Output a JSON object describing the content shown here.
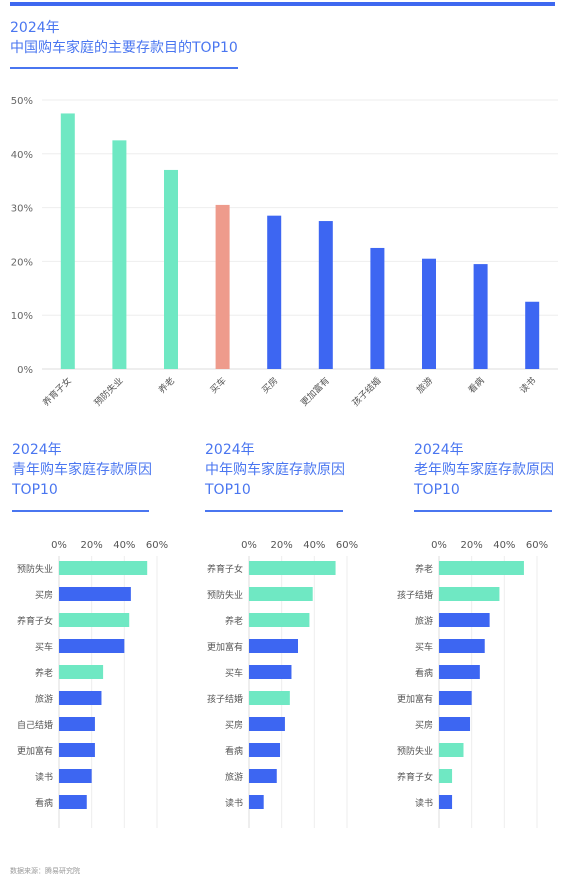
{
  "colors": {
    "green": "#6fe8c3",
    "blue": "#3d66f2",
    "salmon": "#ee9b8c",
    "title": "#4a76f0"
  },
  "main": {
    "title_line1": "2024年",
    "title_line2": "中国购车家庭的主要存款目的TOP10"
  },
  "chart_data": [
    {
      "type": "bar",
      "title": "2024年 中国购车家庭的主要存款目的TOP10",
      "categories": [
        "养育子女",
        "预防失业",
        "养老",
        "买车",
        "买房",
        "更加富有",
        "孩子结婚",
        "旅游",
        "看病",
        "读书"
      ],
      "values": [
        47.5,
        42.5,
        37,
        30.5,
        28.5,
        27.5,
        22.5,
        20.5,
        19.5,
        12.5
      ],
      "colors": [
        "green",
        "green",
        "green",
        "salmon",
        "blue",
        "blue",
        "blue",
        "blue",
        "blue",
        "blue"
      ],
      "ylim": [
        0,
        50
      ],
      "yticks": [
        "0%",
        "10%",
        "20%",
        "30%",
        "40%",
        "50%"
      ],
      "grid": true
    },
    {
      "type": "bar",
      "orientation": "horizontal",
      "title": "2024年 青年购车家庭存款原因 TOP10",
      "categories": [
        "预防失业",
        "买房",
        "养育子女",
        "买车",
        "养老",
        "旅游",
        "自己结婚",
        "更加富有",
        "读书",
        "看病"
      ],
      "values": [
        54,
        44,
        43,
        40,
        27,
        26,
        22,
        22,
        20,
        17
      ],
      "colors": [
        "green",
        "blue",
        "green",
        "blue",
        "green",
        "blue",
        "blue",
        "blue",
        "blue",
        "blue"
      ],
      "xlim": [
        0,
        60
      ],
      "xticks": [
        "0%",
        "20%",
        "40%",
        "60%"
      ]
    },
    {
      "type": "bar",
      "orientation": "horizontal",
      "title": "2024年 中年购车家庭存款原因 TOP10",
      "categories": [
        "养育子女",
        "预防失业",
        "养老",
        "更加富有",
        "买车",
        "孩子结婚",
        "买房",
        "看病",
        "旅游",
        "读书"
      ],
      "values": [
        53,
        39,
        37,
        30,
        26,
        25,
        22,
        19,
        17,
        9
      ],
      "colors": [
        "green",
        "green",
        "green",
        "blue",
        "blue",
        "green",
        "blue",
        "blue",
        "blue",
        "blue"
      ],
      "xlim": [
        0,
        60
      ],
      "xticks": [
        "0%",
        "20%",
        "40%",
        "60%"
      ]
    },
    {
      "type": "bar",
      "orientation": "horizontal",
      "title": "2024年 老年购车家庭存款原因 TOP10",
      "categories": [
        "养老",
        "孩子结婚",
        "旅游",
        "买车",
        "看病",
        "更加富有",
        "买房",
        "预防失业",
        "养育子女",
        "读书"
      ],
      "values": [
        52,
        37,
        31,
        28,
        25,
        20,
        19,
        15,
        8,
        8
      ],
      "colors": [
        "green",
        "green",
        "blue",
        "blue",
        "blue",
        "blue",
        "blue",
        "green",
        "green",
        "blue"
      ],
      "xlim": [
        0,
        60
      ],
      "xticks": [
        "0%",
        "20%",
        "40%",
        "60%"
      ]
    }
  ],
  "sub": [
    {
      "line1": "2024年",
      "line2": "青年购车家庭存款原因",
      "line3": "TOP10"
    },
    {
      "line1": "2024年",
      "line2": "中年购车家庭存款原因",
      "line3": "TOP10"
    },
    {
      "line1": "2024年",
      "line2": "老年购车家庭存款原因",
      "line3": "TOP10"
    }
  ],
  "source": "数据来源：腾易研究院"
}
